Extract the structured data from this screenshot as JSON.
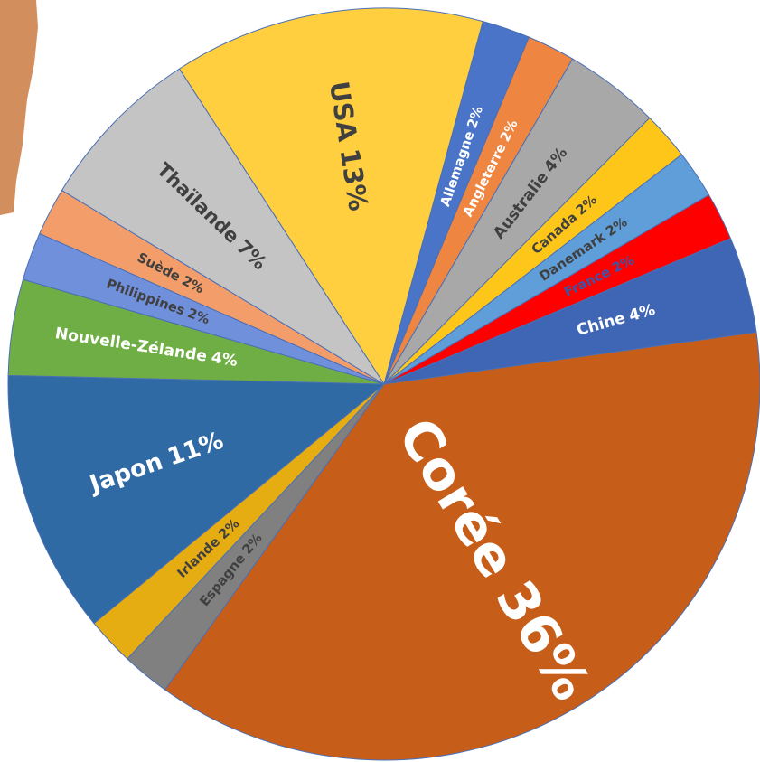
{
  "chart_data": {
    "type": "pie",
    "categories": [
      "USA",
      "Allemagne",
      "Angleterre",
      "Australie",
      "Canada",
      "Danemark",
      "France",
      "Chine",
      "Corée",
      "Espagne",
      "Irlande",
      "Japon",
      "Nouvelle-Zélande",
      "Philippines",
      "Suède",
      "Thaïlande"
    ],
    "values": [
      13,
      2,
      2,
      4,
      2,
      2,
      2,
      4,
      36,
      2,
      2,
      11,
      4,
      2,
      2,
      7
    ],
    "value_labels": [
      "13%",
      "2%",
      "2%",
      "4%",
      "2%",
      "2%",
      "2%",
      "4%",
      "36%",
      "2%",
      "2%",
      "11%",
      "4%",
      "2%",
      "2%",
      "7%"
    ],
    "colors": [
      "#ffcf40",
      "#4a74c8",
      "#ee8540",
      "#a8a8a8",
      "#ffc61a",
      "#5f9ed8",
      "#ff0000",
      "#3f66b4",
      "#c65e1a",
      "#808080",
      "#e6ad12",
      "#2f6aa5",
      "#6fae45",
      "#7090dc",
      "#f39d6a",
      "#c4c4c4"
    ],
    "text_colors": [
      "#404040",
      "#ffffff",
      "#ffffff",
      "#404040",
      "#404040",
      "#404040",
      "#3b55a8",
      "#ffffff",
      "#ffffff",
      "#404040",
      "#404040",
      "#ffffff",
      "#ffffff",
      "#404040",
      "#404040",
      "#404040"
    ]
  }
}
